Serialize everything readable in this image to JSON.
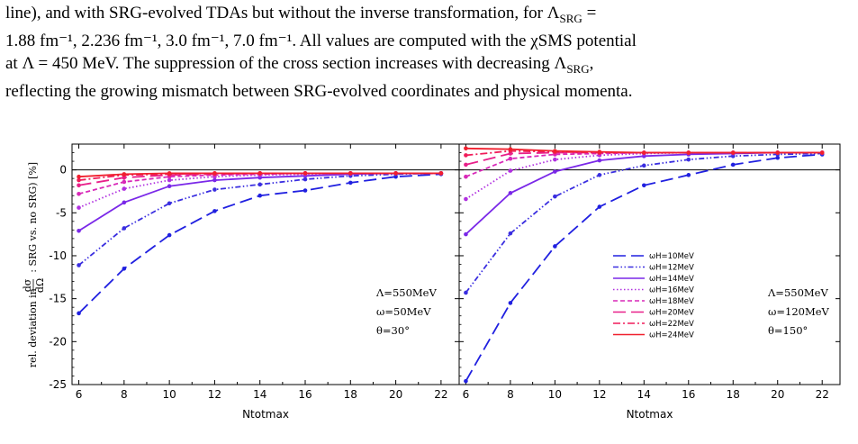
{
  "caption": {
    "line1": "line), and with SRG-evolved TDAs but without the inverse transformation, for Λ",
    "line1_sub": "SRG",
    "line1_end": " =",
    "line2": "1.88 fm⁻¹, 2.236 fm⁻¹, 3.0 fm⁻¹, 7.0 fm⁻¹. All values are computed with the χSMS potential",
    "line3a": "at Λ = 450 MeV. The suppression of the cross section increases with decreasing Λ",
    "line3_sub": "SRG",
    "line3_end": ",",
    "line4": "reflecting the growing mismatch between SRG-evolved coordinates and physical momenta."
  },
  "figure": {
    "ylabel_pre": "rel. deviation in ",
    "ylabel_num": "dσ",
    "ylabel_den": "dΩ",
    "ylabel_post": ": SRG vs. no SRG) [%]",
    "xlabel": "Ntotmax",
    "xticks": [
      "6",
      "8",
      "10",
      "12",
      "14",
      "16",
      "18",
      "20",
      "22"
    ],
    "yticks": [
      "0",
      "-5",
      "-10",
      "-15",
      "-20",
      "-25"
    ],
    "left_annotation": [
      "Λ=550MeV",
      "ω=50MeV",
      "θ=30°"
    ],
    "right_annotation": [
      "Λ=550MeV",
      "ω=120MeV",
      "θ=150°"
    ]
  },
  "chart_data": [
    {
      "type": "line",
      "xlabel": "Ntotmax",
      "ylabel": "rel. deviation in dσ/dΩ: SRG vs. no SRG) [%]",
      "xlim": [
        5.7,
        22.8
      ],
      "ylim": [
        -25,
        3
      ],
      "grid": false,
      "x": [
        6,
        8,
        10,
        12,
        14,
        16,
        18,
        20,
        22
      ],
      "series": [
        {
          "name": "ωH=10MeV",
          "color": "#2020e0",
          "dash": "long-dash",
          "values": [
            -16.7,
            -11.5,
            -7.6,
            -4.8,
            -3.0,
            -2.4,
            -1.5,
            -0.8,
            -0.5
          ]
        },
        {
          "name": "ωH=12MeV",
          "color": "#3a2ee0",
          "dash": "dash-dot-dot",
          "values": [
            -11.1,
            -6.8,
            -3.9,
            -2.3,
            -1.7,
            -1.1,
            -0.7,
            -0.5,
            -0.4
          ]
        },
        {
          "name": "ωH=14MeV",
          "color": "#7a28e8",
          "dash": "solid",
          "values": [
            -7.1,
            -3.8,
            -1.9,
            -1.2,
            -0.9,
            -0.7,
            -0.5,
            -0.4,
            -0.4
          ]
        },
        {
          "name": "ωH=16MeV",
          "color": "#b030e0",
          "dash": "dotted",
          "values": [
            -4.4,
            -2.2,
            -1.2,
            -0.8,
            -0.6,
            -0.5,
            -0.4,
            -0.4,
            -0.4
          ]
        },
        {
          "name": "ωH=18MeV",
          "color": "#d828b8",
          "dash": "short-dash",
          "values": [
            -2.8,
            -1.4,
            -0.8,
            -0.6,
            -0.5,
            -0.4,
            -0.4,
            -0.4,
            -0.4
          ]
        },
        {
          "name": "ωH=20MeV",
          "color": "#e8208a",
          "dash": "long-dash",
          "values": [
            -1.8,
            -0.9,
            -0.6,
            -0.5,
            -0.4,
            -0.4,
            -0.4,
            -0.4,
            -0.4
          ]
        },
        {
          "name": "ωH=22MeV",
          "color": "#f01c5a",
          "dash": "dash-dot",
          "values": [
            -1.2,
            -0.6,
            -0.5,
            -0.4,
            -0.4,
            -0.4,
            -0.4,
            -0.4,
            -0.4
          ]
        },
        {
          "name": "ωH=24MeV",
          "color": "#f0202e",
          "dash": "solid",
          "values": [
            -0.8,
            -0.5,
            -0.4,
            -0.4,
            -0.4,
            -0.4,
            -0.4,
            -0.4,
            -0.4
          ]
        }
      ]
    },
    {
      "type": "line",
      "xlabel": "Ntotmax",
      "legend_position": "center-right",
      "xlim": [
        5.7,
        22.8
      ],
      "ylim": [
        -25,
        3
      ],
      "grid": false,
      "x": [
        6,
        8,
        10,
        12,
        14,
        16,
        18,
        20,
        22
      ],
      "series": [
        {
          "name": "ωH=10MeV",
          "color": "#2020e0",
          "dash": "long-dash",
          "values": [
            -24.6,
            -15.5,
            -8.9,
            -4.3,
            -1.8,
            -0.6,
            0.6,
            1.4,
            1.8
          ]
        },
        {
          "name": "ωH=12MeV",
          "color": "#3a2ee0",
          "dash": "dash-dot-dot",
          "values": [
            -14.3,
            -7.4,
            -3.1,
            -0.6,
            0.5,
            1.2,
            1.6,
            1.8,
            1.9
          ]
        },
        {
          "name": "ωH=14MeV",
          "color": "#7a28e8",
          "dash": "solid",
          "values": [
            -7.5,
            -2.7,
            -0.2,
            1.1,
            1.6,
            1.8,
            1.9,
            2.0,
            2.0
          ]
        },
        {
          "name": "ωH=16MeV",
          "color": "#b030e0",
          "dash": "dotted",
          "values": [
            -3.4,
            -0.1,
            1.2,
            1.7,
            1.9,
            2.0,
            2.0,
            2.0,
            2.0
          ]
        },
        {
          "name": "ωH=18MeV",
          "color": "#d828b8",
          "dash": "short-dash",
          "values": [
            -0.8,
            1.3,
            1.8,
            1.9,
            2.0,
            2.0,
            2.0,
            2.0,
            2.0
          ]
        },
        {
          "name": "ωH=20MeV",
          "color": "#e8208a",
          "dash": "long-dash",
          "values": [
            0.6,
            1.9,
            2.0,
            2.0,
            2.0,
            2.0,
            2.0,
            2.0,
            2.0
          ]
        },
        {
          "name": "ωH=22MeV",
          "color": "#f01c5a",
          "dash": "dash-dot",
          "values": [
            1.7,
            2.2,
            2.1,
            2.0,
            2.0,
            2.0,
            2.0,
            2.0,
            2.0
          ]
        },
        {
          "name": "ωH=24MeV",
          "color": "#f0202e",
          "dash": "solid",
          "values": [
            2.5,
            2.4,
            2.2,
            2.1,
            2.0,
            2.0,
            2.0,
            2.0,
            2.0
          ]
        }
      ]
    }
  ]
}
